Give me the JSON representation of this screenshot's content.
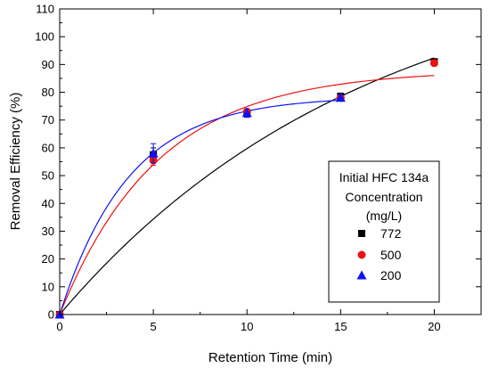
{
  "chart_data": {
    "type": "scatter",
    "xlabel": "Retention Time (min)",
    "ylabel": "Removal Efficiency (%)",
    "xlim": [
      0,
      22.5
    ],
    "ylim": [
      0,
      110
    ],
    "xticks": [
      0,
      5,
      10,
      15,
      20
    ],
    "yticks": [
      0,
      10,
      20,
      30,
      40,
      50,
      60,
      70,
      80,
      90,
      100,
      110
    ],
    "legend": {
      "title_lines": [
        "Initial HFC 134a",
        "Concentration",
        "(mg/L)"
      ],
      "placement": "bottom-right"
    },
    "series": [
      {
        "name": "772",
        "marker": "square",
        "color": "#000000",
        "x": [
          0,
          5,
          10,
          15,
          20
        ],
        "y": [
          0,
          57.5,
          72.5,
          78.5,
          91
        ],
        "err": [
          0,
          2.5,
          1.5,
          1.2,
          1.0
        ],
        "fit": {
          "a": 131.6,
          "k": 0.0605,
          "range": [
            0,
            20
          ]
        }
      },
      {
        "name": "500",
        "marker": "circle",
        "color": "#ee1111",
        "x": [
          0,
          5,
          10,
          15,
          20
        ],
        "y": [
          0,
          55.5,
          73,
          78,
          90.5
        ],
        "err": [
          0,
          1.8,
          1.0,
          1.0,
          1.0
        ],
        "fit": {
          "a": 88.0,
          "k": 0.19,
          "range": [
            0,
            20
          ]
        }
      },
      {
        "name": "200",
        "marker": "triangle",
        "color": "#1111ee",
        "x": [
          0,
          5,
          10,
          15
        ],
        "y": [
          0,
          58,
          72.5,
          78
        ],
        "err": [
          0,
          3.5,
          1.5,
          1.0
        ],
        "fit": {
          "a": 78.5,
          "k": 0.27,
          "range": [
            0,
            15
          ]
        }
      }
    ]
  }
}
